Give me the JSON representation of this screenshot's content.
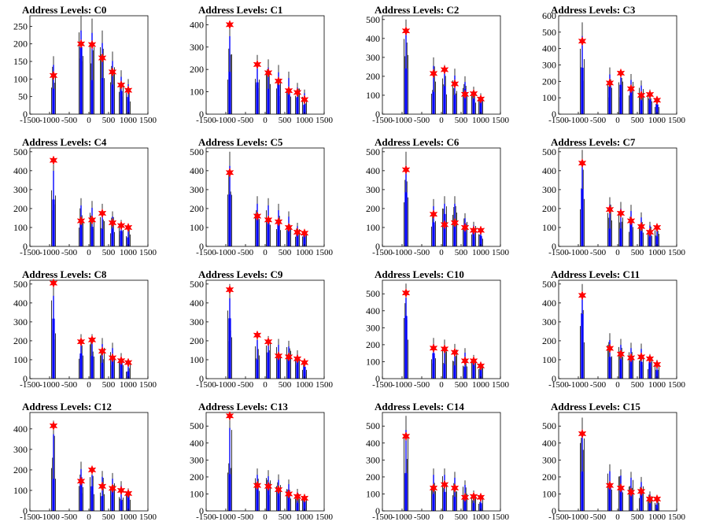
{
  "figure": {
    "panel_title_prefix": "Address Levels: ",
    "x_ticks": [
      "-1500",
      "-1000",
      "-500",
      "0",
      "500",
      "1000",
      "1500"
    ],
    "colors": {
      "histogram_line": "#000000",
      "histogram_fill": "#0000ff",
      "marker": "#ff0000",
      "axis": "#000000"
    }
  },
  "chart_data": [
    {
      "type": "bar",
      "title": "Address Levels: C0",
      "label": "C0",
      "xlim": [
        -1500,
        1500
      ],
      "ylim": [
        0,
        280
      ],
      "y_ticks": [
        0,
        50,
        100,
        150,
        200,
        250
      ],
      "markers": [
        {
          "x": -900,
          "y": 110
        },
        {
          "x": -200,
          "y": 200
        },
        {
          "x": 80,
          "y": 198
        },
        {
          "x": 340,
          "y": 160
        },
        {
          "x": 600,
          "y": 120
        },
        {
          "x": 820,
          "y": 83
        },
        {
          "x": 1000,
          "y": 68
        }
      ],
      "peaks": [
        {
          "x": -900,
          "y": 165
        },
        {
          "x": -200,
          "y": 280
        },
        {
          "x": 80,
          "y": 272
        },
        {
          "x": 340,
          "y": 238
        },
        {
          "x": 600,
          "y": 178
        },
        {
          "x": 820,
          "y": 125
        },
        {
          "x": 1000,
          "y": 100
        }
      ]
    },
    {
      "type": "bar",
      "title": "Address Levels: C1",
      "label": "C1",
      "xlim": [
        -1500,
        1500
      ],
      "ylim": [
        0,
        440
      ],
      "y_ticks": [
        0,
        100,
        200,
        300,
        400
      ],
      "markers": [
        {
          "x": -900,
          "y": 400
        },
        {
          "x": -200,
          "y": 222
        },
        {
          "x": 80,
          "y": 185
        },
        {
          "x": 340,
          "y": 148
        },
        {
          "x": 600,
          "y": 105
        },
        {
          "x": 820,
          "y": 97
        },
        {
          "x": 1000,
          "y": 65
        }
      ],
      "peaks": [
        {
          "x": -900,
          "y": 410
        },
        {
          "x": -200,
          "y": 265
        },
        {
          "x": 80,
          "y": 245
        },
        {
          "x": 340,
          "y": 220
        },
        {
          "x": 600,
          "y": 190
        },
        {
          "x": 820,
          "y": 140
        },
        {
          "x": 1000,
          "y": 110
        }
      ]
    },
    {
      "type": "bar",
      "title": "Address Levels: C2",
      "label": "C2",
      "xlim": [
        -1500,
        1500
      ],
      "ylim": [
        0,
        520
      ],
      "y_ticks": [
        0,
        100,
        200,
        300,
        400,
        500
      ],
      "markers": [
        {
          "x": -900,
          "y": 440
        },
        {
          "x": -200,
          "y": 215
        },
        {
          "x": 80,
          "y": 235
        },
        {
          "x": 340,
          "y": 160
        },
        {
          "x": 600,
          "y": 105
        },
        {
          "x": 820,
          "y": 108
        },
        {
          "x": 1000,
          "y": 80
        }
      ],
      "peaks": [
        {
          "x": -900,
          "y": 500
        },
        {
          "x": -200,
          "y": 300
        },
        {
          "x": 80,
          "y": 260
        },
        {
          "x": 340,
          "y": 240
        },
        {
          "x": 600,
          "y": 200
        },
        {
          "x": 820,
          "y": 145
        },
        {
          "x": 1000,
          "y": 110
        }
      ]
    },
    {
      "type": "bar",
      "title": "Address Levels: C3",
      "label": "C3",
      "xlim": [
        -1500,
        1500
      ],
      "ylim": [
        0,
        600
      ],
      "y_ticks": [
        0,
        100,
        200,
        300,
        400,
        500,
        600
      ],
      "markers": [
        {
          "x": -900,
          "y": 445
        },
        {
          "x": -200,
          "y": 190
        },
        {
          "x": 80,
          "y": 250
        },
        {
          "x": 340,
          "y": 155
        },
        {
          "x": 600,
          "y": 115
        },
        {
          "x": 820,
          "y": 120
        },
        {
          "x": 1000,
          "y": 85
        }
      ],
      "peaks": [
        {
          "x": -900,
          "y": 560
        },
        {
          "x": -200,
          "y": 285
        },
        {
          "x": 80,
          "y": 265
        },
        {
          "x": 340,
          "y": 245
        },
        {
          "x": 600,
          "y": 205
        },
        {
          "x": 820,
          "y": 150
        },
        {
          "x": 1000,
          "y": 110
        }
      ]
    },
    {
      "type": "bar",
      "title": "Address Levels: C4",
      "label": "C4",
      "xlim": [
        -1500,
        1500
      ],
      "ylim": [
        0,
        520
      ],
      "y_ticks": [
        0,
        100,
        200,
        300,
        400,
        500
      ],
      "markers": [
        {
          "x": -900,
          "y": 455
        },
        {
          "x": -200,
          "y": 135
        },
        {
          "x": 80,
          "y": 140
        },
        {
          "x": 340,
          "y": 175
        },
        {
          "x": 600,
          "y": 125
        },
        {
          "x": 820,
          "y": 110
        },
        {
          "x": 1000,
          "y": 100
        }
      ],
      "peaks": [
        {
          "x": -900,
          "y": 470
        },
        {
          "x": -200,
          "y": 255
        },
        {
          "x": 80,
          "y": 240
        },
        {
          "x": 340,
          "y": 225
        },
        {
          "x": 600,
          "y": 185
        },
        {
          "x": 820,
          "y": 140
        },
        {
          "x": 1000,
          "y": 110
        }
      ]
    },
    {
      "type": "bar",
      "title": "Address Levels: C5",
      "label": "C5",
      "xlim": [
        -1500,
        1500
      ],
      "ylim": [
        0,
        520
      ],
      "y_ticks": [
        0,
        100,
        200,
        300,
        400,
        500
      ],
      "markers": [
        {
          "x": -900,
          "y": 390
        },
        {
          "x": -200,
          "y": 160
        },
        {
          "x": 80,
          "y": 140
        },
        {
          "x": 340,
          "y": 130
        },
        {
          "x": 600,
          "y": 100
        },
        {
          "x": 820,
          "y": 75
        },
        {
          "x": 1000,
          "y": 70
        }
      ],
      "peaks": [
        {
          "x": -900,
          "y": 500
        },
        {
          "x": -200,
          "y": 265
        },
        {
          "x": 80,
          "y": 255
        },
        {
          "x": 340,
          "y": 225
        },
        {
          "x": 600,
          "y": 185
        },
        {
          "x": 820,
          "y": 125
        },
        {
          "x": 1000,
          "y": 90
        }
      ]
    },
    {
      "type": "bar",
      "title": "Address Levels: C6",
      "label": "C6",
      "xlim": [
        -1500,
        1500
      ],
      "ylim": [
        0,
        520
      ],
      "y_ticks": [
        0,
        100,
        200,
        300,
        400,
        500
      ],
      "markers": [
        {
          "x": -900,
          "y": 405
        },
        {
          "x": -200,
          "y": 170
        },
        {
          "x": 80,
          "y": 115
        },
        {
          "x": 340,
          "y": 125
        },
        {
          "x": 600,
          "y": 100
        },
        {
          "x": 820,
          "y": 85
        },
        {
          "x": 1000,
          "y": 85
        }
      ],
      "peaks": [
        {
          "x": -900,
          "y": 500
        },
        {
          "x": -200,
          "y": 250
        },
        {
          "x": 80,
          "y": 265
        },
        {
          "x": 340,
          "y": 265
        },
        {
          "x": 600,
          "y": 175
        },
        {
          "x": 820,
          "y": 130
        },
        {
          "x": 1000,
          "y": 95
        }
      ]
    },
    {
      "type": "bar",
      "title": "Address Levels: C7",
      "label": "C7",
      "xlim": [
        -1500,
        1500
      ],
      "ylim": [
        0,
        520
      ],
      "y_ticks": [
        0,
        100,
        200,
        300,
        400,
        500
      ],
      "markers": [
        {
          "x": -900,
          "y": 440
        },
        {
          "x": -200,
          "y": 195
        },
        {
          "x": 80,
          "y": 175
        },
        {
          "x": 340,
          "y": 135
        },
        {
          "x": 600,
          "y": 105
        },
        {
          "x": 820,
          "y": 75
        },
        {
          "x": 1000,
          "y": 100
        }
      ],
      "peaks": [
        {
          "x": -900,
          "y": 510
        },
        {
          "x": -200,
          "y": 260
        },
        {
          "x": 80,
          "y": 235
        },
        {
          "x": 340,
          "y": 220
        },
        {
          "x": 600,
          "y": 180
        },
        {
          "x": 820,
          "y": 130
        },
        {
          "x": 1000,
          "y": 110
        }
      ]
    },
    {
      "type": "bar",
      "title": "Address Levels: C8",
      "label": "C8",
      "xlim": [
        -1500,
        1500
      ],
      "ylim": [
        0,
        520
      ],
      "y_ticks": [
        0,
        100,
        200,
        300,
        400,
        500
      ],
      "markers": [
        {
          "x": -900,
          "y": 505
        },
        {
          "x": -200,
          "y": 195
        },
        {
          "x": 80,
          "y": 205
        },
        {
          "x": 340,
          "y": 145
        },
        {
          "x": 600,
          "y": 110
        },
        {
          "x": 820,
          "y": 95
        },
        {
          "x": 1000,
          "y": 85
        }
      ],
      "peaks": [
        {
          "x": -900,
          "y": 515
        },
        {
          "x": -200,
          "y": 235
        },
        {
          "x": 80,
          "y": 235
        },
        {
          "x": 340,
          "y": 215
        },
        {
          "x": 600,
          "y": 190
        },
        {
          "x": 820,
          "y": 135
        },
        {
          "x": 1000,
          "y": 100
        }
      ]
    },
    {
      "type": "bar",
      "title": "Address Levels: C9",
      "label": "C9",
      "xlim": [
        -1500,
        1500
      ],
      "ylim": [
        0,
        520
      ],
      "y_ticks": [
        0,
        100,
        200,
        300,
        400,
        500
      ],
      "markers": [
        {
          "x": -900,
          "y": 470
        },
        {
          "x": -200,
          "y": 230
        },
        {
          "x": 80,
          "y": 195
        },
        {
          "x": 340,
          "y": 120
        },
        {
          "x": 600,
          "y": 115
        },
        {
          "x": 820,
          "y": 105
        },
        {
          "x": 1000,
          "y": 85
        }
      ],
      "peaks": [
        {
          "x": -900,
          "y": 500
        },
        {
          "x": -200,
          "y": 240
        },
        {
          "x": 80,
          "y": 225
        },
        {
          "x": 340,
          "y": 210
        },
        {
          "x": 600,
          "y": 200
        },
        {
          "x": 820,
          "y": 150
        },
        {
          "x": 1000,
          "y": 100
        }
      ]
    },
    {
      "type": "bar",
      "title": "Address Levels: C10",
      "label": "C10",
      "xlim": [
        -1500,
        1500
      ],
      "ylim": [
        0,
        580
      ],
      "y_ticks": [
        0,
        100,
        200,
        300,
        400,
        500
      ],
      "markers": [
        {
          "x": -900,
          "y": 505
        },
        {
          "x": -200,
          "y": 180
        },
        {
          "x": 80,
          "y": 175
        },
        {
          "x": 340,
          "y": 155
        },
        {
          "x": 600,
          "y": 105
        },
        {
          "x": 820,
          "y": 105
        },
        {
          "x": 1000,
          "y": 75
        }
      ],
      "peaks": [
        {
          "x": -900,
          "y": 560
        },
        {
          "x": -200,
          "y": 240
        },
        {
          "x": 80,
          "y": 230
        },
        {
          "x": 340,
          "y": 205
        },
        {
          "x": 600,
          "y": 180
        },
        {
          "x": 820,
          "y": 140
        },
        {
          "x": 1000,
          "y": 100
        }
      ]
    },
    {
      "type": "bar",
      "title": "Address Levels: C11",
      "label": "C11",
      "xlim": [
        -1500,
        1500
      ],
      "ylim": [
        0,
        520
      ],
      "y_ticks": [
        0,
        100,
        200,
        300,
        400,
        500
      ],
      "markers": [
        {
          "x": -900,
          "y": 440
        },
        {
          "x": -200,
          "y": 160
        },
        {
          "x": 80,
          "y": 130
        },
        {
          "x": 340,
          "y": 110
        },
        {
          "x": 600,
          "y": 115
        },
        {
          "x": 820,
          "y": 105
        },
        {
          "x": 1000,
          "y": 75
        }
      ],
      "peaks": [
        {
          "x": -900,
          "y": 500
        },
        {
          "x": -200,
          "y": 240
        },
        {
          "x": 80,
          "y": 210
        },
        {
          "x": 340,
          "y": 190
        },
        {
          "x": 600,
          "y": 185
        },
        {
          "x": 820,
          "y": 130
        },
        {
          "x": 1000,
          "y": 100
        }
      ]
    },
    {
      "type": "bar",
      "title": "Address Levels: C12",
      "label": "C12",
      "xlim": [
        -1500,
        1500
      ],
      "ylim": [
        0,
        480
      ],
      "y_ticks": [
        0,
        100,
        200,
        300,
        400
      ],
      "markers": [
        {
          "x": -900,
          "y": 415
        },
        {
          "x": -200,
          "y": 145
        },
        {
          "x": 80,
          "y": 200
        },
        {
          "x": 340,
          "y": 120
        },
        {
          "x": 600,
          "y": 110
        },
        {
          "x": 820,
          "y": 100
        },
        {
          "x": 1000,
          "y": 85
        }
      ],
      "peaks": [
        {
          "x": -900,
          "y": 440
        },
        {
          "x": -200,
          "y": 240
        },
        {
          "x": 80,
          "y": 205
        },
        {
          "x": 340,
          "y": 195
        },
        {
          "x": 600,
          "y": 185
        },
        {
          "x": 820,
          "y": 145
        },
        {
          "x": 1000,
          "y": 110
        }
      ]
    },
    {
      "type": "bar",
      "title": "Address Levels: C13",
      "label": "C13",
      "xlim": [
        -1500,
        1500
      ],
      "ylim": [
        0,
        580
      ],
      "y_ticks": [
        0,
        100,
        200,
        300,
        400,
        500
      ],
      "markers": [
        {
          "x": -900,
          "y": 560
        },
        {
          "x": -200,
          "y": 150
        },
        {
          "x": 80,
          "y": 145
        },
        {
          "x": 340,
          "y": 125
        },
        {
          "x": 600,
          "y": 100
        },
        {
          "x": 820,
          "y": 85
        },
        {
          "x": 1000,
          "y": 75
        }
      ],
      "peaks": [
        {
          "x": -900,
          "y": 575
        },
        {
          "x": -200,
          "y": 250
        },
        {
          "x": 80,
          "y": 240
        },
        {
          "x": 340,
          "y": 215
        },
        {
          "x": 600,
          "y": 185
        },
        {
          "x": 820,
          "y": 130
        },
        {
          "x": 1000,
          "y": 100
        }
      ]
    },
    {
      "type": "bar",
      "title": "Address Levels: C14",
      "label": "C14",
      "xlim": [
        -1500,
        1500
      ],
      "ylim": [
        0,
        580
      ],
      "y_ticks": [
        0,
        100,
        200,
        300,
        400,
        500
      ],
      "markers": [
        {
          "x": -900,
          "y": 440
        },
        {
          "x": -200,
          "y": 135
        },
        {
          "x": 80,
          "y": 155
        },
        {
          "x": 340,
          "y": 135
        },
        {
          "x": 600,
          "y": 80
        },
        {
          "x": 820,
          "y": 85
        },
        {
          "x": 1000,
          "y": 80
        }
      ],
      "peaks": [
        {
          "x": -900,
          "y": 560
        },
        {
          "x": -200,
          "y": 250
        },
        {
          "x": 80,
          "y": 250
        },
        {
          "x": 340,
          "y": 230
        },
        {
          "x": 600,
          "y": 180
        },
        {
          "x": 820,
          "y": 120
        },
        {
          "x": 1000,
          "y": 95
        }
      ]
    },
    {
      "type": "bar",
      "title": "Address Levels: C15",
      "label": "C15",
      "xlim": [
        -1500,
        1500
      ],
      "ylim": [
        0,
        580
      ],
      "y_ticks": [
        0,
        100,
        200,
        300,
        400,
        500
      ],
      "markers": [
        {
          "x": -900,
          "y": 455
        },
        {
          "x": -200,
          "y": 150
        },
        {
          "x": 80,
          "y": 135
        },
        {
          "x": 340,
          "y": 110
        },
        {
          "x": 600,
          "y": 115
        },
        {
          "x": 820,
          "y": 70
        },
        {
          "x": 1000,
          "y": 70
        }
      ],
      "peaks": [
        {
          "x": -900,
          "y": 550
        },
        {
          "x": -200,
          "y": 275
        },
        {
          "x": 80,
          "y": 245
        },
        {
          "x": 340,
          "y": 230
        },
        {
          "x": 600,
          "y": 200
        },
        {
          "x": 820,
          "y": 115
        },
        {
          "x": 1000,
          "y": 90
        }
      ]
    }
  ]
}
